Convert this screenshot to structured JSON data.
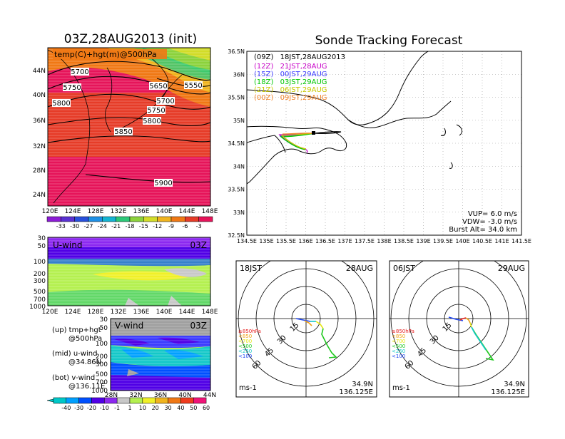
{
  "header": {
    "left_title": "03Z,28AUG2013 (init)",
    "right_title": "Sonde Tracking Forecast"
  },
  "temp_map": {
    "label": "temp(C)+hgt(m)@500hPa",
    "lat_ticks": [
      "44N",
      "40N",
      "36N",
      "32N",
      "28N",
      "24N"
    ],
    "lon_ticks": [
      "120E",
      "124E",
      "128E",
      "132E",
      "136E",
      "140E",
      "144E",
      "148E"
    ],
    "height_labels": [
      "5700",
      "5750",
      "5800",
      "5650",
      "5550",
      "5700",
      "5750",
      "5800",
      "5850",
      "5900"
    ],
    "colorbar_labels": [
      "-33",
      "-30",
      "-27",
      "-24",
      "-21",
      "-18",
      "-15",
      "-12",
      "-9",
      "-6",
      "-3"
    ],
    "colorbar_colors": [
      "#8c1cd6",
      "#5a32d2",
      "#2850dc",
      "#1e90e6",
      "#14b4d2",
      "#2cc878",
      "#8cd23c",
      "#d2dc28",
      "#f0b41e",
      "#f07814",
      "#e63c28",
      "#e6145a"
    ]
  },
  "u_wind": {
    "label": "U-wind",
    "time": "03Z",
    "p_ticks": [
      "30",
      "50",
      "100",
      "200",
      "300",
      "500",
      "700",
      "1000"
    ],
    "lon_ticks": [
      "120E",
      "124E",
      "128E",
      "132E",
      "136E",
      "140E",
      "144E",
      "148E"
    ]
  },
  "v_wind": {
    "label": "V-wind",
    "time": "03Z",
    "p_ticks": [
      "30",
      "50",
      "100",
      "200",
      "300",
      "500",
      "700",
      "1000"
    ],
    "lat_ticks": [
      "28N",
      "32N",
      "36N",
      "40N",
      "44N"
    ]
  },
  "legend_notes": [
    {
      "a": "(up) tmp+hgt",
      "b": "@500hPa"
    },
    {
      "a": "(mid) u-wind",
      "b": "@34.86N"
    },
    {
      "a": "(bot) v-wind",
      "b": "@136.11E"
    }
  ],
  "wind_colorbar": {
    "labels": [
      "-40",
      "-30",
      "-20",
      "-10",
      "-1",
      "1",
      "10",
      "20",
      "30",
      "40",
      "50",
      "60"
    ],
    "colors": [
      "#00c8c8",
      "#00a0ff",
      "#0050ff",
      "#5000e6",
      "#8c28f0",
      "#c8c8c8",
      "#b4f050",
      "#f0f028",
      "#f0b41e",
      "#f07814",
      "#f03c1e",
      "#f01478"
    ]
  },
  "track_panel": {
    "lat_ticks": [
      "36.5N",
      "36N",
      "35.5N",
      "35N",
      "34.5N",
      "34N",
      "33.5N",
      "33N",
      "32.5N"
    ],
    "lon_ticks": [
      "134.5E",
      "135E",
      "135.5E",
      "136E",
      "136.5E",
      "137E",
      "137.5E",
      "138E",
      "138.5E",
      "139E",
      "139.5E",
      "140E",
      "140.5E",
      "141E",
      "141.5E"
    ],
    "launches": [
      {
        "z": "(09Z)",
        "t": "18JST,28AUG2013",
        "color": "#000000"
      },
      {
        "z": "(12Z)",
        "t": "21JST,28AUG",
        "color": "#c800c8"
      },
      {
        "z": "(15Z)",
        "t": "00JST,29AUG",
        "color": "#3c3cff"
      },
      {
        "z": "(18Z)",
        "t": "03JST,29AUG",
        "color": "#00c800"
      },
      {
        "z": "(21Z)",
        "t": "06JST,29AUG",
        "color": "#c8c800"
      },
      {
        "z": "(00Z)",
        "t": "09JST,29AUG",
        "color": "#f08228"
      }
    ],
    "params": [
      "VUP= 6.0 m/s",
      "VDW= -3.0 m/s",
      "Burst Alt= 34.0 km"
    ]
  },
  "hodo_left": {
    "time": "18JST",
    "date": "28AUG",
    "lat": "34.9N",
    "lon": "136.125E",
    "unit": "ms-1",
    "rings": [
      "15",
      "30",
      "45",
      "60"
    ]
  },
  "hodo_right": {
    "time": "06JST",
    "date": "29AUG",
    "lat": "34.9N",
    "lon": "136.125E",
    "unit": "ms-1",
    "rings": [
      "15",
      "30",
      "45",
      "60"
    ]
  },
  "hodo_legend": [
    {
      "label": "≥850hPa",
      "color": "#e61e1e"
    },
    {
      "label": "<850",
      "color": "#f0a014"
    },
    {
      "label": "<700",
      "color": "#e6e614"
    },
    {
      "label": "<500",
      "color": "#1ec81e"
    },
    {
      "label": "<250",
      "color": "#14c8c8"
    },
    {
      "label": "<100",
      "color": "#1e46f0"
    }
  ]
}
